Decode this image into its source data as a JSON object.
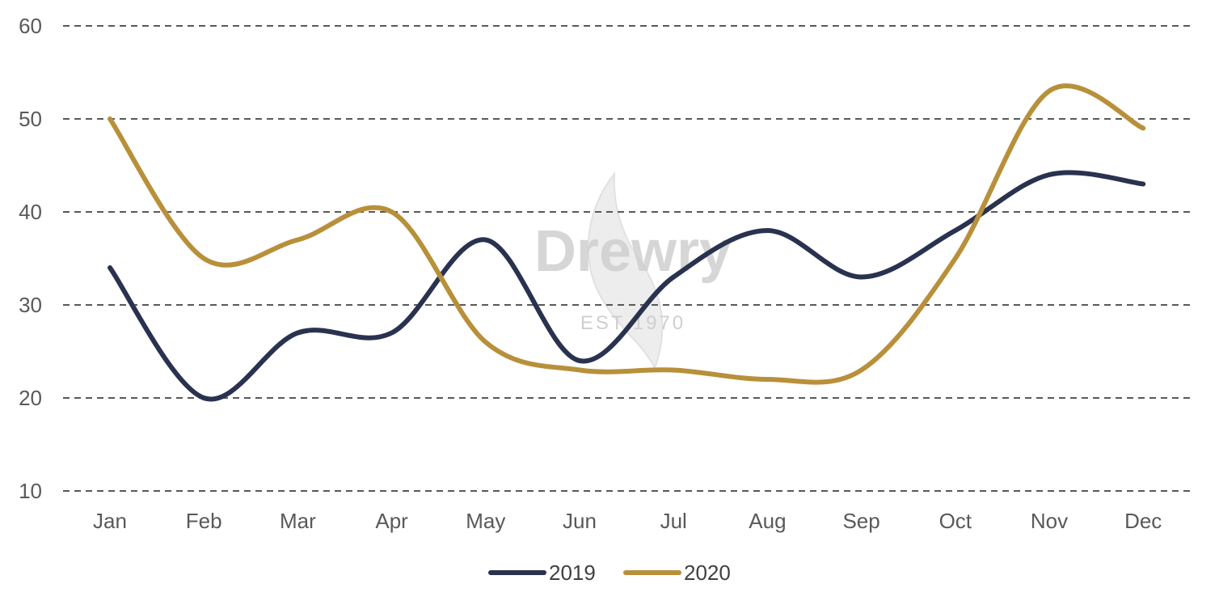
{
  "chart_data": {
    "type": "line",
    "title": "",
    "xlabel": "",
    "ylabel": "",
    "categories": [
      "Jan",
      "Feb",
      "Mar",
      "Apr",
      "May",
      "Jun",
      "Jul",
      "Aug",
      "Sep",
      "Oct",
      "Nov",
      "Dec"
    ],
    "yticks": [
      "10",
      "20",
      "30",
      "40",
      "50",
      "60"
    ],
    "ylim": [
      10,
      60
    ],
    "grid": "horizontal dashed",
    "smooth": true,
    "legend_position": "bottom",
    "series": [
      {
        "name": "2019",
        "color": "#29324f",
        "values": [
          34,
          20,
          27,
          27,
          37,
          24,
          33,
          38,
          33,
          38,
          44,
          43
        ]
      },
      {
        "name": "2020",
        "color": "#b8903a",
        "values": [
          50,
          35,
          37,
          40,
          26,
          23,
          23,
          22,
          23,
          35,
          53,
          49
        ]
      }
    ]
  },
  "watermark": {
    "brand": "Drewry",
    "tagline": "EST 1970",
    "icon": "flame-logo-icon"
  }
}
